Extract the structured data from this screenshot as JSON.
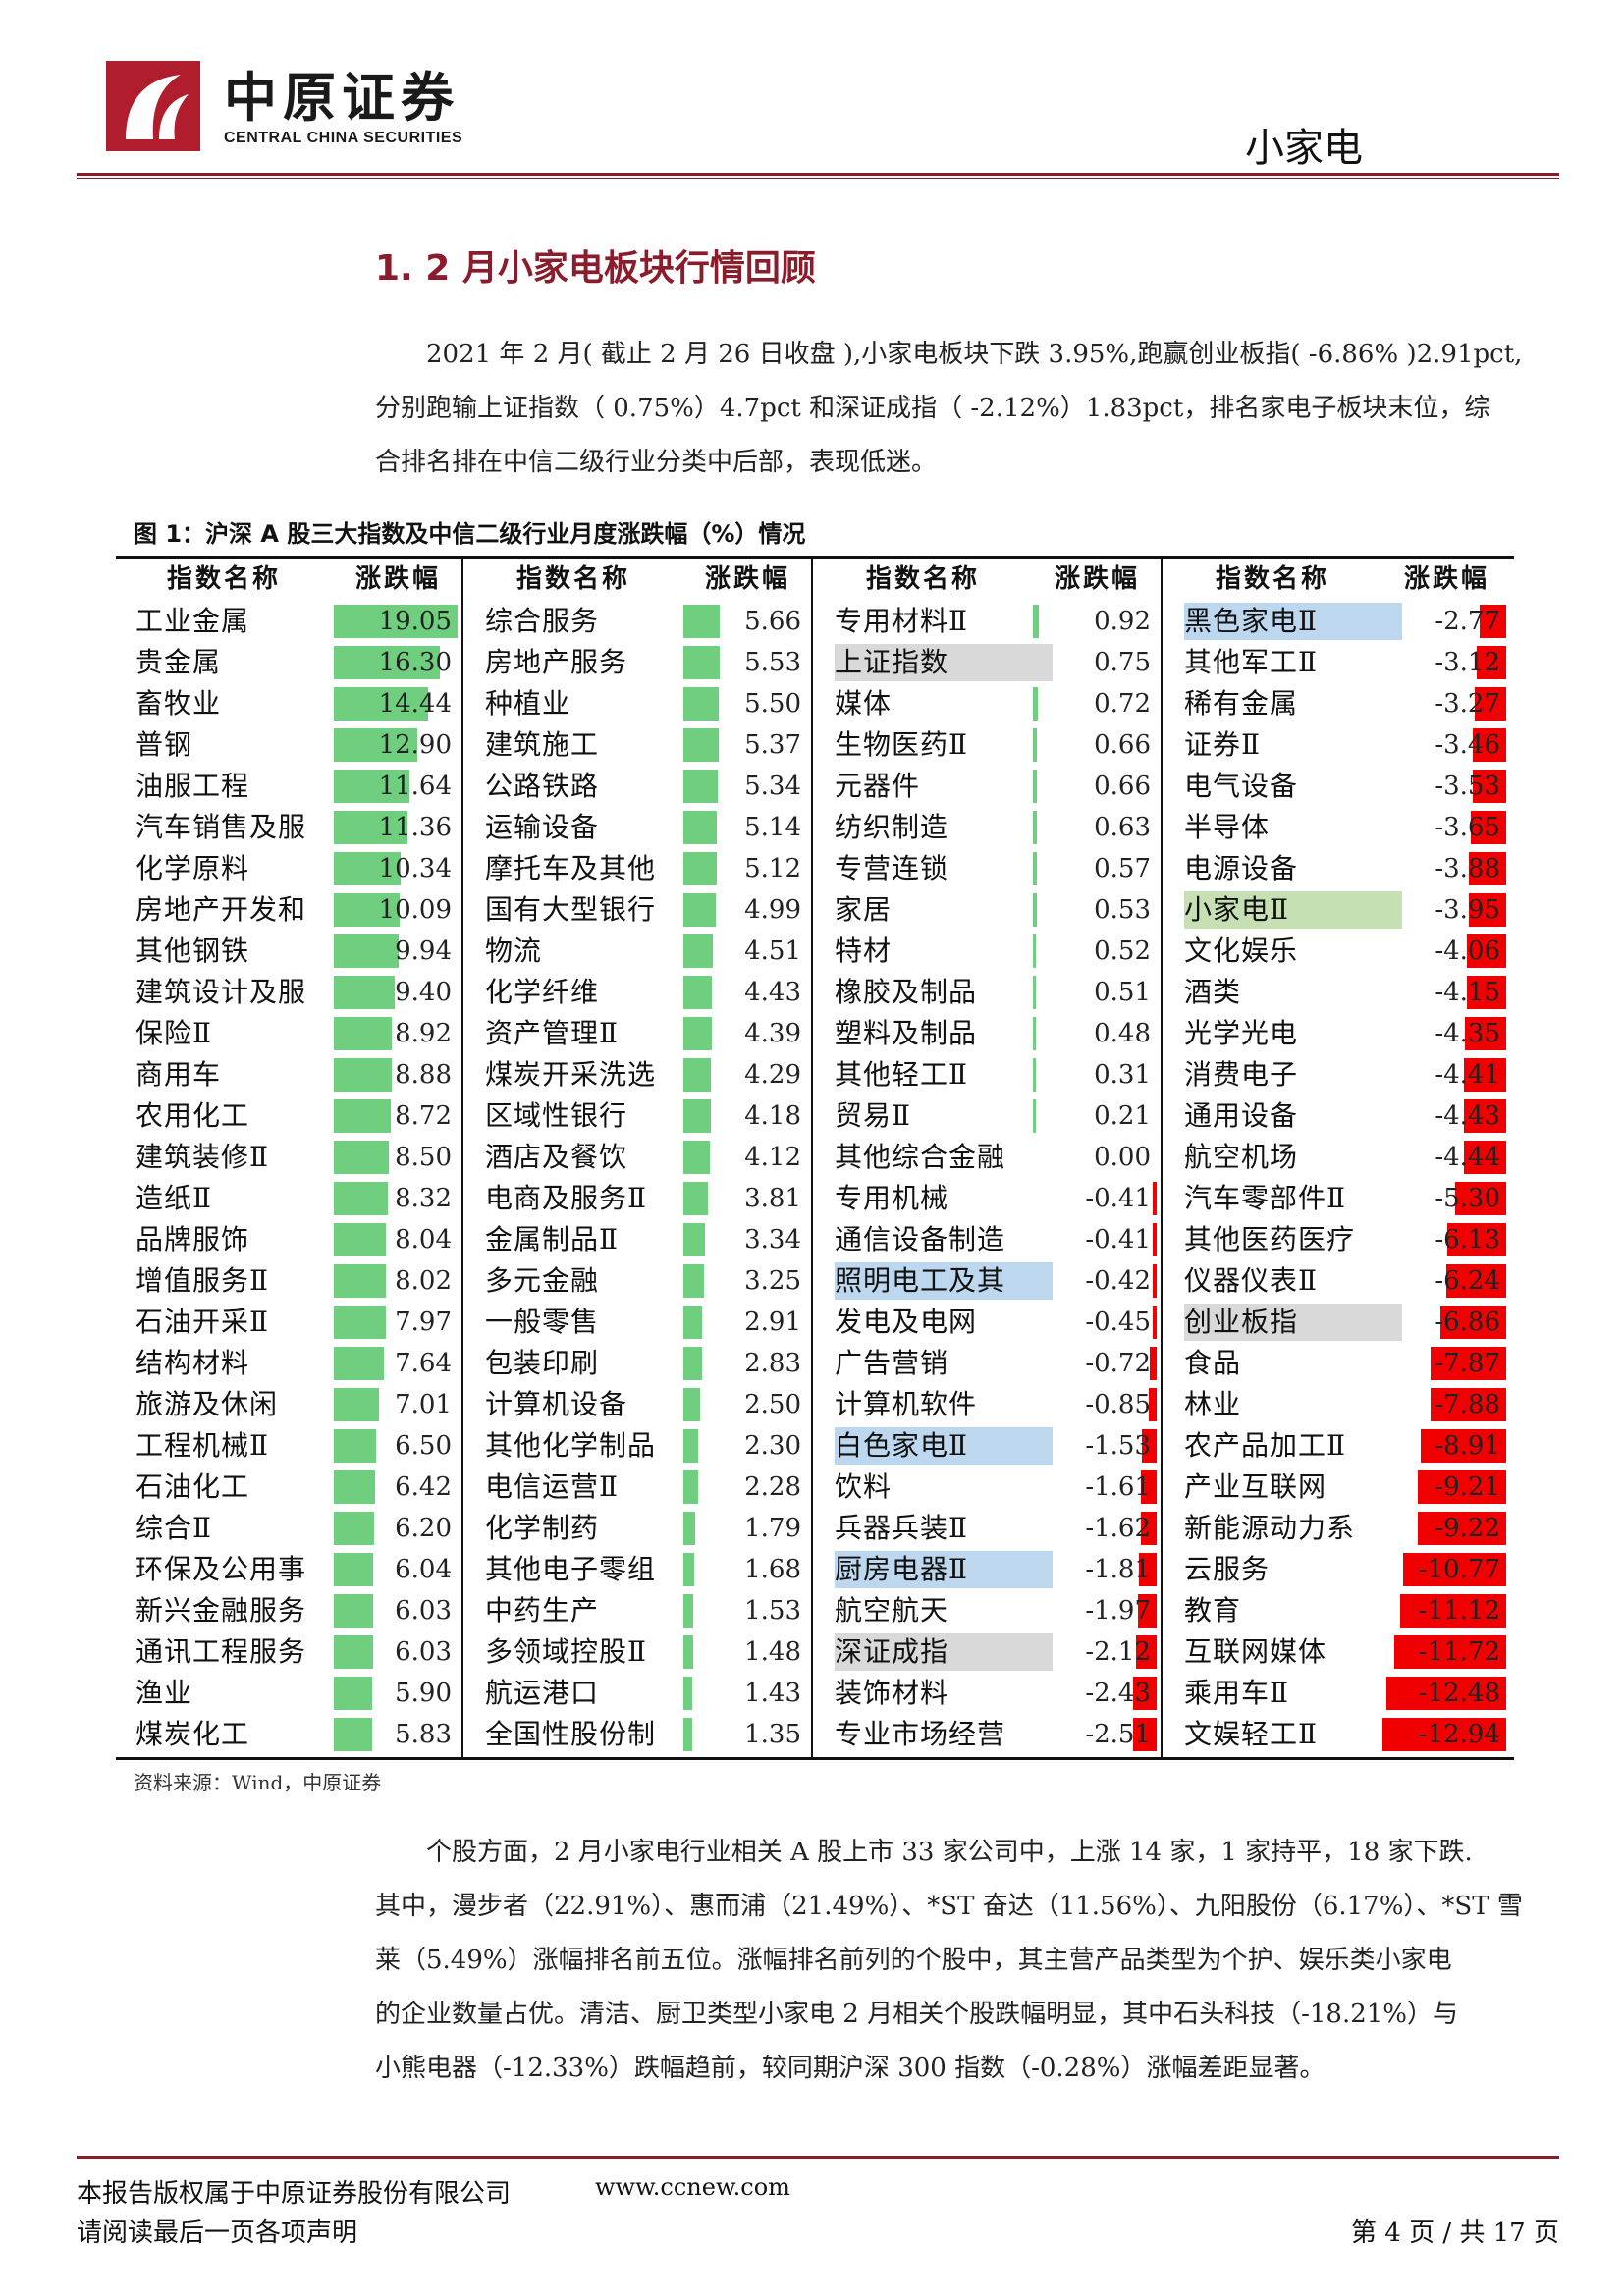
{
  "header": {
    "brand_cn": "中原证券",
    "brand_en": "CENTRAL CHINA SECURITIES",
    "category": "小家电"
  },
  "section_title": "1. 2 月小家电板块行情回顾",
  "para1": [
    "2021 年 2 月( 截止 2 月 26 日收盘 ),小家电板块下跌 3.95%,跑赢创业板指( -6.86% )2.91pct,",
    "分别跑输上证指数（ 0.75%）4.7pct 和深证成指（ -2.12%）1.83pct，排名家电子板块末位，综",
    "合排名排在中信二级行业分类中后部，表现低迷。"
  ],
  "figure_caption": "图 1：沪深 A 股三大指数及中信二级行业月度涨跌幅（%）情况",
  "table_headers": {
    "name": "指数名称",
    "value": "涨跌幅"
  },
  "table": {
    "type": "table",
    "columns": [
      [
        {
          "n": "工业金属",
          "v": "19.05"
        },
        {
          "n": "贵金属",
          "v": "16.30"
        },
        {
          "n": "畜牧业",
          "v": "14.44"
        },
        {
          "n": "普钢",
          "v": "12.90"
        },
        {
          "n": "油服工程",
          "v": "11.64"
        },
        {
          "n": "汽车销售及服",
          "v": "11.36"
        },
        {
          "n": "化学原料",
          "v": "10.34"
        },
        {
          "n": "房地产开发和",
          "v": "10.09"
        },
        {
          "n": "其他钢铁",
          "v": "9.94"
        },
        {
          "n": "建筑设计及服",
          "v": "9.40"
        },
        {
          "n": "保险Ⅱ",
          "v": "8.92"
        },
        {
          "n": "商用车",
          "v": "8.88"
        },
        {
          "n": "农用化工",
          "v": "8.72"
        },
        {
          "n": "建筑装修Ⅱ",
          "v": "8.50"
        },
        {
          "n": "造纸Ⅱ",
          "v": "8.32"
        },
        {
          "n": "品牌服饰",
          "v": "8.04"
        },
        {
          "n": "增值服务Ⅱ",
          "v": "8.02"
        },
        {
          "n": "石油开采Ⅱ",
          "v": "7.97"
        },
        {
          "n": "结构材料",
          "v": "7.64"
        },
        {
          "n": "旅游及休闲",
          "v": "7.01"
        },
        {
          "n": "工程机械Ⅱ",
          "v": "6.50"
        },
        {
          "n": "石油化工",
          "v": "6.42"
        },
        {
          "n": "综合Ⅱ",
          "v": "6.20"
        },
        {
          "n": "环保及公用事",
          "v": "6.04"
        },
        {
          "n": "新兴金融服务",
          "v": "6.03"
        },
        {
          "n": "通讯工程服务",
          "v": "6.03"
        },
        {
          "n": "渔业",
          "v": "5.90"
        },
        {
          "n": "煤炭化工",
          "v": "5.83"
        }
      ],
      [
        {
          "n": "综合服务",
          "v": "5.66"
        },
        {
          "n": "房地产服务",
          "v": "5.53"
        },
        {
          "n": "种植业",
          "v": "5.50"
        },
        {
          "n": "建筑施工",
          "v": "5.37"
        },
        {
          "n": "公路铁路",
          "v": "5.34"
        },
        {
          "n": "运输设备",
          "v": "5.14"
        },
        {
          "n": "摩托车及其他",
          "v": "5.12"
        },
        {
          "n": "国有大型银行",
          "v": "4.99"
        },
        {
          "n": "物流",
          "v": "4.51"
        },
        {
          "n": "化学纤维",
          "v": "4.43"
        },
        {
          "n": "资产管理Ⅱ",
          "v": "4.39"
        },
        {
          "n": "煤炭开采洗选",
          "v": "4.29"
        },
        {
          "n": "区域性银行",
          "v": "4.18"
        },
        {
          "n": "酒店及餐饮",
          "v": "4.12"
        },
        {
          "n": "电商及服务Ⅱ",
          "v": "3.81"
        },
        {
          "n": "金属制品Ⅱ",
          "v": "3.34"
        },
        {
          "n": "多元金融",
          "v": "3.25"
        },
        {
          "n": "一般零售",
          "v": "2.91"
        },
        {
          "n": "包装印刷",
          "v": "2.83"
        },
        {
          "n": "计算机设备",
          "v": "2.50"
        },
        {
          "n": "其他化学制品",
          "v": "2.30"
        },
        {
          "n": "电信运营Ⅱ",
          "v": "2.28"
        },
        {
          "n": "化学制药",
          "v": "1.79"
        },
        {
          "n": "其他电子零组",
          "v": "1.68"
        },
        {
          "n": "中药生产",
          "v": "1.53"
        },
        {
          "n": "多领域控股Ⅱ",
          "v": "1.48"
        },
        {
          "n": "航运港口",
          "v": "1.43"
        },
        {
          "n": "全国性股份制",
          "v": "1.35"
        }
      ],
      [
        {
          "n": "专用材料Ⅱ",
          "v": "0.92"
        },
        {
          "n": "上证指数",
          "v": "0.75",
          "hl": "gray"
        },
        {
          "n": "媒体",
          "v": "0.72"
        },
        {
          "n": "生物医药Ⅱ",
          "v": "0.66"
        },
        {
          "n": "元器件",
          "v": "0.66"
        },
        {
          "n": "纺织制造",
          "v": "0.63"
        },
        {
          "n": "专营连锁",
          "v": "0.57"
        },
        {
          "n": "家居",
          "v": "0.53"
        },
        {
          "n": "特材",
          "v": "0.52"
        },
        {
          "n": "橡胶及制品",
          "v": "0.51"
        },
        {
          "n": "塑料及制品",
          "v": "0.48"
        },
        {
          "n": "其他轻工Ⅱ",
          "v": "0.31"
        },
        {
          "n": "贸易Ⅱ",
          "v": "0.21"
        },
        {
          "n": "其他综合金融",
          "v": "0.00"
        },
        {
          "n": "专用机械",
          "v": "-0.41"
        },
        {
          "n": "通信设备制造",
          "v": "-0.41"
        },
        {
          "n": "照明电工及其",
          "v": "-0.42",
          "hl": "blue"
        },
        {
          "n": "发电及电网",
          "v": "-0.45"
        },
        {
          "n": "广告营销",
          "v": "-0.72"
        },
        {
          "n": "计算机软件",
          "v": "-0.85"
        },
        {
          "n": "白色家电Ⅱ",
          "v": "-1.53",
          "hl": "blue"
        },
        {
          "n": "饮料",
          "v": "-1.61"
        },
        {
          "n": "兵器兵装Ⅱ",
          "v": "-1.62"
        },
        {
          "n": "厨房电器Ⅱ",
          "v": "-1.81",
          "hl": "blue"
        },
        {
          "n": "航空航天",
          "v": "-1.97"
        },
        {
          "n": "深证成指",
          "v": "-2.12",
          "hl": "gray"
        },
        {
          "n": "装饰材料",
          "v": "-2.43"
        },
        {
          "n": "专业市场经营",
          "v": "-2.51"
        }
      ],
      [
        {
          "n": "黑色家电Ⅱ",
          "v": "-2.77",
          "hl": "blue"
        },
        {
          "n": "其他军工Ⅱ",
          "v": "-3.12"
        },
        {
          "n": "稀有金属",
          "v": "-3.27"
        },
        {
          "n": "证券Ⅱ",
          "v": "-3.46"
        },
        {
          "n": "电气设备",
          "v": "-3.53"
        },
        {
          "n": "半导体",
          "v": "-3.65"
        },
        {
          "n": "电源设备",
          "v": "-3.88"
        },
        {
          "n": "小家电Ⅱ",
          "v": "-3.95",
          "hl": "green"
        },
        {
          "n": "文化娱乐",
          "v": "-4.06"
        },
        {
          "n": "酒类",
          "v": "-4.15"
        },
        {
          "n": "光学光电",
          "v": "-4.35"
        },
        {
          "n": "消费电子",
          "v": "-4.41"
        },
        {
          "n": "通用设备",
          "v": "-4.43"
        },
        {
          "n": "航空机场",
          "v": "-4.44"
        },
        {
          "n": "汽车零部件Ⅱ",
          "v": "-5.30"
        },
        {
          "n": "其他医药医疗",
          "v": "-6.13"
        },
        {
          "n": "仪器仪表Ⅱ",
          "v": "-6.24"
        },
        {
          "n": "创业板指",
          "v": "-6.86",
          "hl": "gray"
        },
        {
          "n": "食品",
          "v": "-7.87"
        },
        {
          "n": "林业",
          "v": "-7.88"
        },
        {
          "n": "农产品加工Ⅱ",
          "v": "-8.91"
        },
        {
          "n": "产业互联网",
          "v": "-9.21"
        },
        {
          "n": "新能源动力系",
          "v": "-9.22"
        },
        {
          "n": "云服务",
          "v": "-10.77"
        },
        {
          "n": "教育",
          "v": "-11.12"
        },
        {
          "n": "互联网媒体",
          "v": "-11.72"
        },
        {
          "n": "乘用车Ⅱ",
          "v": "-12.48"
        },
        {
          "n": "文娱轻工Ⅱ",
          "v": "-12.94"
        }
      ]
    ],
    "value_range": [
      -12.94,
      19.05
    ]
  },
  "source": "资料来源：Wind，中原证券",
  "para2": [
    "个股方面，2 月小家电行业相关 A 股上市 33 家公司中，上涨 14 家，1 家持平，18 家下跌.",
    "其中，漫步者（22.91%）、惠而浦（21.49%）、*ST 奋达（11.56%）、九阳股份（6.17%）、*ST 雪",
    "莱（5.49%）涨幅排名前五位。涨幅排名前列的个股中，其主营产品类型为个护、娱乐类小家电",
    "的企业数量占优。清洁、厨卫类型小家电 2 月相关个股跌幅明显，其中石头科技（-18.21%）与",
    "小熊电器（-12.33%）跌幅趋前，较同期沪深 300 指数（-0.28%）涨幅差距显著。"
  ],
  "footer": {
    "copyright": "本报告版权属于中原证券股份有限公司",
    "url": "www.ccnew.com",
    "notice": "请阅读最后一页各项声明",
    "page": "第 4 页 / 共 17 页"
  }
}
